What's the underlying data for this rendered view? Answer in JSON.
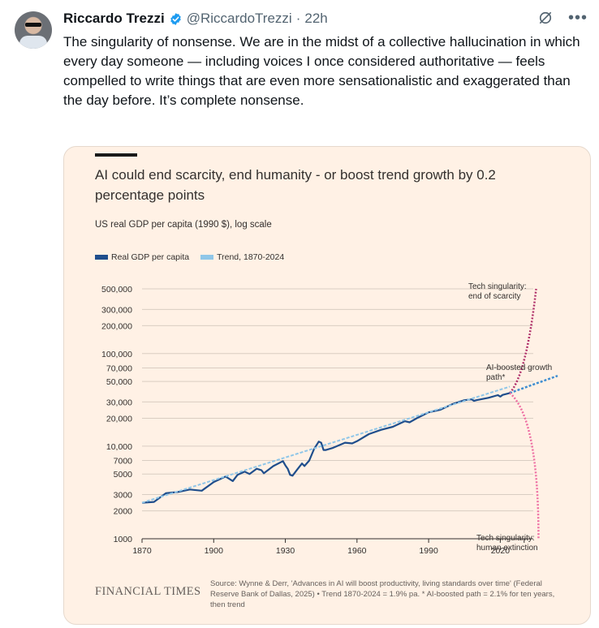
{
  "tweet": {
    "author_name": "Riccardo Trezzi",
    "handle": "@RiccardoTrezzi",
    "dot": "·",
    "time": "22h",
    "text": "The singularity of nonsense. We are in the midst of a collective hallucination in which every day someone — including voices I once considered authoritative — feels compelled to write things that are even more sensationalistic and exaggerated than the day before. It’s complete nonsense.",
    "more_icon": "more-horizontal-icon",
    "grok_icon": "grok-icon",
    "verified_icon": "verified-badge-icon"
  },
  "colors": {
    "card_bg": "#fff1e5",
    "series_real": "#1f4e8c",
    "series_trend": "#8fc6e8",
    "ai_path": "#3f8ed1",
    "singularity_up": "#b0306a",
    "singularity_down": "#ee6fa3",
    "verified": "#1d9bf0"
  },
  "chart_data": {
    "type": "line",
    "title": "AI could end scarcity, end humanity - or boost trend growth by 0.2 percentage points",
    "subtitle": "US real GDP per capita (1990 $), log scale",
    "y_scale": "log",
    "ylim": [
      1000,
      500000
    ],
    "xlim": [
      1870,
      2040
    ],
    "y_ticks": [
      "500,000",
      "300,000",
      "200,000",
      "100,000",
      "70,000",
      "50,000",
      "30,000",
      "20,000",
      "10,000",
      "7000",
      "5000",
      "3000",
      "2000",
      "1000"
    ],
    "y_tick_values": [
      500000,
      300000,
      200000,
      100000,
      70000,
      50000,
      30000,
      20000,
      10000,
      7000,
      5000,
      3000,
      2000,
      1000
    ],
    "x_ticks": [
      "1870",
      "1900",
      "1930",
      "1960",
      "1990",
      "2020"
    ],
    "x_tick_values": [
      1870,
      1900,
      1930,
      1960,
      1990,
      2020
    ],
    "legend": [
      "Real GDP per capita",
      "Trend, 1870-2024"
    ],
    "series": [
      {
        "name": "Real GDP per capita",
        "x": [
          1870,
          1875,
          1880,
          1885,
          1890,
          1895,
          1900,
          1905,
          1908,
          1910,
          1913,
          1915,
          1918,
          1920,
          1921,
          1925,
          1929,
          1930,
          1931,
          1932,
          1933,
          1935,
          1937,
          1938,
          1940,
          1942,
          1944,
          1945,
          1946,
          1947,
          1950,
          1955,
          1958,
          1960,
          1965,
          1970,
          1975,
          1980,
          1982,
          1985,
          1990,
          1995,
          2000,
          2005,
          2008,
          2009,
          2010,
          2015,
          2019,
          2020,
          2021,
          2024
        ],
        "y": [
          2450,
          2500,
          3100,
          3200,
          3400,
          3300,
          4100,
          4700,
          4200,
          4900,
          5300,
          5000,
          5700,
          5500,
          5100,
          6100,
          6900,
          6200,
          5700,
          4900,
          4800,
          5600,
          6500,
          6100,
          7000,
          9300,
          11200,
          10900,
          9100,
          9100,
          9600,
          10900,
          10700,
          11300,
          13500,
          15000,
          16200,
          18600,
          18100,
          20000,
          23200,
          24800,
          28500,
          31400,
          32000,
          30800,
          31400,
          33300,
          35600,
          34300,
          35800,
          37500
        ]
      },
      {
        "name": "Trend, 1870-2024",
        "x": [
          1870,
          2024
        ],
        "y": [
          2450,
          44000
        ]
      }
    ],
    "annotations": [
      {
        "label": "Tech singularity: end of scarcity",
        "x": [
          2024,
          2030,
          2035
        ],
        "y": [
          37500,
          60000,
          500000
        ]
      },
      {
        "label": "AI-boosted growth path*",
        "x": [
          2024,
          2034,
          2044
        ],
        "y": [
          37500,
          46500,
          57500
        ]
      },
      {
        "label": "Tech singularity: human extinction",
        "x": [
          2024,
          2030,
          2034,
          2036,
          2037
        ],
        "y": [
          37500,
          20000,
          7000,
          2000,
          1000
        ]
      }
    ],
    "source": "Source: Wynne & Derr, 'Advances in AI will boost productivity, living standards over time' (Federal Reserve Bank of Dallas, 2025) • Trend 1870-2024 = 1.9% pa. * AI-boosted path = 2.1% for ten years, then trend",
    "branding": "FINANCIAL TIMES"
  }
}
